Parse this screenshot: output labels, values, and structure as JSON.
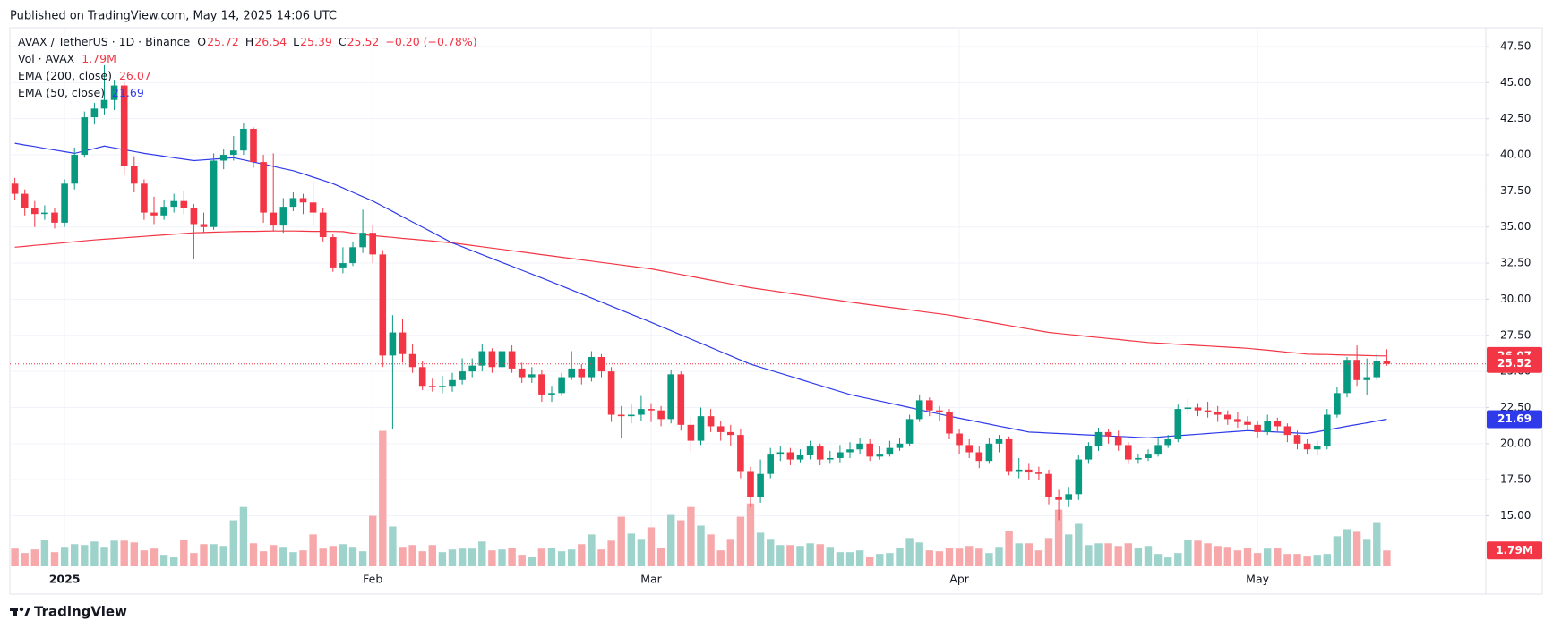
{
  "published": "Published on TradingView.com, May 14, 2025 14:06 UTC",
  "brand": "TradingView",
  "chart_data": {
    "type": "candlestick",
    "title": "AVAX / TetherUS · 1D · Binance",
    "ohlc_letters": [
      "O",
      "H",
      "L",
      "C"
    ],
    "change": "−0.20 (−0.78%)",
    "categories": [
      null,
      null,
      null,
      null,
      null,
      "2025",
      null,
      null,
      null,
      null,
      null,
      null,
      null,
      null,
      null,
      null,
      null,
      null,
      null,
      null,
      null,
      null,
      null,
      null,
      null,
      null,
      null,
      null,
      null,
      null,
      null,
      null,
      null,
      null,
      null,
      null,
      "Feb",
      null,
      null,
      null,
      null,
      null,
      null,
      null,
      null,
      null,
      null,
      null,
      null,
      null,
      null,
      null,
      null,
      null,
      null,
      null,
      null,
      null,
      null,
      null,
      null,
      null,
      null,
      null,
      "Mar",
      null,
      null,
      null,
      null,
      null,
      null,
      null,
      null,
      null,
      null,
      null,
      null,
      null,
      null,
      null,
      null,
      null,
      null,
      null,
      null,
      null,
      null,
      null,
      null,
      null,
      null,
      null,
      null,
      null,
      null,
      "Apr",
      null,
      null,
      null,
      null,
      null,
      null,
      null,
      null,
      null,
      null,
      null,
      null,
      null,
      null,
      null,
      null,
      null,
      null,
      null,
      null,
      null,
      null,
      null,
      null,
      null,
      null,
      null,
      null,
      null,
      "May",
      null,
      null,
      null,
      null,
      null,
      null,
      null,
      null,
      null,
      null,
      null,
      null,
      null
    ],
    "open": [
      38.0,
      37.3,
      36.3,
      35.9,
      36.0,
      35.3,
      38.0,
      40.0,
      42.6,
      43.2,
      43.8,
      44.8,
      39.2,
      38.0,
      36.0,
      35.8,
      36.4,
      36.8,
      36.3,
      35.2,
      35.0,
      39.6,
      40.0,
      40.3,
      41.8,
      39.5,
      36.0,
      35.1,
      36.4,
      37.0,
      36.7,
      36.0,
      34.3,
      32.2,
      32.5,
      33.6,
      34.6,
      33.1,
      26.1,
      27.7,
      26.2,
      25.3,
      24.0,
      23.9,
      24.0,
      24.4,
      25.0,
      25.4,
      26.4,
      25.3,
      26.4,
      25.2,
      24.6,
      24.8,
      23.4,
      23.5,
      24.6,
      25.2,
      24.6,
      26.0,
      25.0,
      22.0,
      21.9,
      22.0,
      22.4,
      22.3,
      21.7,
      24.8,
      21.3,
      20.2,
      21.9,
      21.2,
      20.8,
      20.6,
      18.1,
      16.3,
      17.9,
      19.3,
      19.4,
      18.9,
      19.2,
      19.8,
      18.9,
      19.0,
      19.4,
      19.6,
      20.0,
      19.1,
      19.3,
      19.7,
      20.0,
      21.7,
      23.0,
      22.3,
      22.2,
      20.7,
      19.9,
      19.4,
      18.8,
      20.0,
      20.3,
      18.1,
      18.2,
      18.0,
      17.9,
      16.3,
      16.1,
      16.5,
      18.9,
      19.8,
      20.8,
      20.5,
      19.9,
      18.9,
      19.0,
      19.3,
      19.9,
      20.3,
      22.4,
      22.5,
      22.3,
      22.2,
      22.0,
      21.7,
      21.5,
      21.3,
      20.8,
      21.6,
      21.2,
      20.6,
      20.0,
      19.6,
      19.8,
      22.0,
      23.5,
      25.8,
      24.4,
      24.6,
      25.72
    ],
    "high": [
      38.4,
      37.6,
      36.8,
      36.5,
      36.3,
      38.3,
      40.5,
      43.0,
      43.6,
      46.2,
      45.2,
      45.0,
      39.9,
      38.3,
      37.1,
      36.9,
      37.3,
      37.5,
      36.6,
      36.0,
      40.1,
      40.4,
      41.3,
      42.2,
      41.9,
      40.0,
      40.1,
      37.0,
      37.4,
      37.3,
      38.2,
      36.3,
      34.5,
      33.6,
      34.0,
      36.2,
      35.1,
      33.4,
      28.9,
      28.6,
      26.9,
      25.7,
      24.5,
      24.7,
      24.9,
      25.9,
      25.9,
      26.9,
      26.6,
      27.1,
      26.8,
      25.6,
      25.3,
      25.1,
      24.0,
      24.9,
      26.4,
      25.5,
      26.4,
      26.2,
      25.3,
      22.6,
      22.7,
      23.3,
      22.8,
      22.6,
      25.1,
      25.0,
      21.8,
      22.5,
      22.4,
      21.6,
      21.3,
      21.0,
      18.4,
      18.9,
      19.7,
      19.8,
      19.7,
      19.6,
      20.2,
      20.0,
      19.5,
      19.9,
      20.1,
      20.4,
      20.3,
      19.8,
      20.2,
      20.4,
      22.0,
      23.4,
      23.2,
      22.6,
      22.4,
      21.0,
      20.3,
      19.8,
      20.4,
      20.6,
      20.5,
      19.0,
      18.6,
      18.4,
      18.2,
      16.8,
      17.0,
      19.2,
      20.1,
      21.1,
      21.0,
      20.9,
      20.1,
      19.3,
      19.6,
      20.5,
      20.6,
      22.7,
      23.1,
      22.8,
      22.9,
      22.6,
      22.3,
      22.2,
      21.9,
      21.6,
      22.0,
      21.8,
      21.4,
      20.9,
      20.3,
      20.2,
      22.4,
      23.9,
      26.0,
      26.8,
      25.9,
      26.2,
      26.54
    ],
    "low": [
      36.9,
      35.8,
      35.0,
      35.5,
      34.9,
      35.0,
      37.6,
      39.8,
      42.1,
      42.8,
      43.1,
      38.6,
      37.4,
      35.5,
      35.2,
      35.5,
      36.0,
      35.9,
      32.8,
      34.6,
      34.8,
      39.0,
      39.6,
      40.0,
      39.1,
      35.3,
      34.7,
      34.6,
      36.1,
      35.9,
      35.1,
      34.0,
      31.9,
      31.8,
      32.3,
      33.2,
      32.5,
      25.3,
      21.0,
      25.6,
      24.9,
      23.7,
      23.6,
      23.5,
      23.6,
      24.1,
      24.6,
      25.0,
      24.9,
      25.0,
      24.9,
      24.2,
      24.2,
      22.9,
      22.9,
      23.3,
      24.4,
      24.1,
      24.3,
      24.6,
      21.5,
      20.4,
      21.4,
      21.6,
      21.5,
      21.2,
      21.4,
      20.9,
      19.4,
      19.9,
      20.8,
      20.2,
      19.8,
      17.6,
      15.6,
      15.9,
      17.6,
      18.8,
      18.5,
      18.7,
      18.9,
      18.5,
      18.6,
      18.7,
      19.0,
      19.3,
      18.8,
      18.9,
      19.1,
      19.5,
      19.8,
      21.5,
      21.9,
      21.6,
      20.3,
      19.3,
      19.0,
      18.3,
      18.6,
      19.4,
      17.8,
      17.6,
      17.5,
      17.5,
      15.8,
      14.7,
      15.6,
      16.1,
      18.6,
      19.5,
      20.0,
      19.5,
      18.6,
      18.6,
      18.8,
      19.1,
      19.7,
      20.1,
      22.0,
      21.9,
      21.8,
      21.5,
      21.3,
      21.1,
      20.9,
      20.4,
      20.6,
      20.8,
      20.1,
      19.6,
      19.3,
      19.2,
      19.6,
      21.8,
      23.2,
      24.0,
      23.4,
      24.4,
      25.39
    ],
    "close": [
      37.3,
      36.3,
      35.9,
      36.0,
      35.3,
      38.0,
      40.0,
      42.6,
      43.2,
      43.8,
      44.8,
      39.2,
      38.0,
      36.0,
      35.8,
      36.4,
      36.8,
      36.3,
      35.2,
      35.0,
      39.6,
      40.0,
      40.3,
      41.8,
      39.5,
      36.0,
      35.1,
      36.4,
      37.0,
      36.7,
      36.0,
      34.3,
      32.2,
      32.5,
      33.6,
      34.6,
      33.1,
      26.1,
      27.7,
      26.2,
      25.3,
      24.0,
      23.9,
      24.0,
      24.4,
      25.0,
      25.4,
      26.4,
      25.3,
      26.4,
      25.2,
      24.6,
      24.8,
      23.4,
      23.5,
      24.6,
      25.2,
      24.6,
      26.0,
      25.0,
      22.0,
      21.9,
      22.0,
      22.4,
      22.3,
      21.7,
      24.8,
      21.3,
      20.2,
      21.9,
      21.2,
      20.8,
      20.6,
      18.1,
      16.3,
      17.9,
      19.3,
      19.4,
      18.9,
      19.2,
      19.8,
      18.9,
      19.0,
      19.4,
      19.6,
      20.0,
      19.1,
      19.3,
      19.7,
      20.0,
      21.7,
      23.0,
      22.3,
      22.2,
      20.7,
      19.9,
      19.4,
      18.8,
      20.0,
      20.3,
      18.1,
      18.2,
      18.0,
      17.9,
      16.3,
      16.1,
      16.5,
      18.9,
      19.8,
      20.8,
      20.5,
      19.9,
      18.9,
      19.0,
      19.3,
      19.9,
      20.3,
      22.4,
      22.5,
      22.3,
      22.2,
      22.0,
      21.7,
      21.5,
      21.3,
      20.8,
      21.6,
      21.2,
      20.6,
      20.0,
      19.6,
      19.8,
      22.0,
      23.5,
      25.8,
      24.4,
      24.6,
      25.72,
      25.52
    ],
    "up_color": "#089981",
    "down_color": "#f23645",
    "volume": {
      "name": "Vol · AVAX",
      "up_color": "#9ed3cc",
      "down_color": "#f7a8ab",
      "values": [
        2.0,
        1.5,
        1.9,
        3.0,
        1.6,
        2.2,
        2.5,
        2.4,
        2.8,
        2.2,
        2.9,
        2.9,
        2.7,
        1.8,
        2.0,
        1.3,
        1.1,
        3.0,
        1.5,
        2.5,
        2.5,
        2.3,
        5.2,
        6.7,
        2.6,
        1.7,
        2.4,
        2.2,
        1.6,
        1.8,
        3.6,
        2.0,
        2.3,
        2.5,
        2.2,
        1.7,
        5.7,
        15.3,
        4.5,
        2.2,
        2.4,
        1.7,
        2.4,
        1.6,
        1.9,
        2.0,
        2.0,
        2.8,
        1.8,
        1.9,
        2.1,
        1.3,
        1.1,
        2.0,
        2.1,
        1.7,
        1.9,
        2.5,
        3.6,
        1.9,
        2.9,
        5.6,
        3.7,
        3.1,
        4.4,
        2.1,
        5.8,
        5.2,
        6.7,
        4.6,
        3.6,
        1.8,
        3.1,
        5.6,
        7.1,
        3.8,
        3.1,
        2.4,
        2.4,
        2.3,
        2.6,
        2.5,
        2.2,
        1.6,
        1.6,
        1.8,
        1.1,
        1.4,
        1.5,
        2.1,
        3.2,
        2.7,
        1.8,
        1.7,
        2.1,
        2.0,
        2.3,
        2.0,
        1.5,
        2.2,
        4.0,
        2.6,
        2.6,
        1.8,
        3.2,
        6.4,
        3.6,
        4.8,
        2.4,
        2.6,
        2.6,
        2.3,
        2.6,
        2.1,
        2.3,
        1.4,
        1.0,
        1.5,
        3.0,
        2.9,
        2.6,
        2.3,
        2.2,
        1.8,
        2.1,
        1.5,
        2.0,
        2.1,
        1.4,
        1.4,
        1.2,
        1.3,
        1.4,
        3.4,
        4.2,
        3.9,
        3.1,
        5.0,
        1.79
      ],
      "value_labels": [
        null,
        null,
        null,
        null,
        null,
        null,
        null,
        null,
        null,
        null,
        null,
        null,
        null,
        null,
        null,
        null,
        null,
        null,
        null,
        null,
        null,
        null,
        null,
        null,
        null,
        null,
        null,
        null,
        null,
        null,
        null,
        null,
        null,
        null,
        null,
        null,
        null,
        null,
        null,
        null,
        null,
        null,
        null,
        null,
        null,
        null,
        null,
        null,
        null,
        null,
        null,
        null,
        null,
        null,
        null,
        null,
        null,
        null,
        null,
        null,
        null,
        null,
        null,
        null,
        null,
        null,
        null,
        null,
        null,
        null,
        null,
        null,
        null,
        null,
        null,
        null,
        null,
        null,
        null,
        null,
        null,
        null,
        null,
        null,
        null,
        null,
        null,
        null,
        null,
        null,
        null,
        null,
        null,
        null,
        null,
        null,
        null,
        null,
        null,
        null,
        null,
        null,
        null,
        null,
        null,
        null,
        null,
        null,
        null,
        null,
        null,
        null,
        null,
        null,
        null,
        null,
        null,
        null,
        null,
        null,
        null,
        null,
        null,
        null,
        null,
        null,
        null,
        null,
        null,
        null,
        null,
        null,
        null,
        null,
        null,
        null,
        null,
        null,
        "1.79M"
      ]
    },
    "series": [
      {
        "name": "EMA (200, close)",
        "color": "#f23645",
        "values": [
          33.6,
          33.66,
          33.73,
          33.79,
          33.85,
          33.91,
          33.98,
          34.04,
          34.1,
          34.15,
          34.2,
          34.25,
          34.3,
          34.35,
          34.4,
          34.45,
          34.5,
          34.55,
          34.6,
          34.62,
          34.64,
          34.66,
          34.68,
          34.7,
          34.7,
          34.71,
          34.72,
          34.72,
          34.72,
          34.71,
          34.7,
          34.7,
          34.69,
          34.68,
          34.58,
          34.48,
          34.4,
          34.34,
          34.28,
          34.21,
          34.15,
          34.09,
          34.03,
          33.96,
          33.9,
          33.81,
          33.72,
          33.63,
          33.54,
          33.45,
          33.36,
          33.27,
          33.18,
          33.09,
          33.0,
          32.91,
          32.82,
          32.73,
          32.64,
          32.55,
          32.46,
          32.37,
          32.28,
          32.19,
          32.1,
          31.97,
          31.84,
          31.71,
          31.58,
          31.45,
          31.32,
          31.19,
          31.06,
          30.93,
          30.8,
          30.7,
          30.6,
          30.5,
          30.4,
          30.3,
          30.2,
          30.1,
          30.0,
          29.9,
          29.8,
          29.71,
          29.62,
          29.53,
          29.44,
          29.35,
          29.26,
          29.17,
          29.08,
          28.99,
          28.9,
          28.78,
          28.66,
          28.54,
          28.42,
          28.3,
          28.18,
          28.06,
          27.94,
          27.82,
          27.7,
          27.63,
          27.56,
          27.49,
          27.42,
          27.35,
          27.28,
          27.21,
          27.14,
          27.07,
          27.0,
          26.96,
          26.92,
          26.88,
          26.84,
          26.8,
          26.76,
          26.72,
          26.68,
          26.64,
          26.6,
          26.53,
          26.47,
          26.4,
          26.33,
          26.27,
          26.2,
          26.18,
          26.17,
          26.15,
          26.13,
          26.12,
          26.1,
          26.08,
          26.07
        ]
      },
      {
        "name": "EMA (50, close)",
        "color": "#2f3bea",
        "values": [
          40.8,
          40.68,
          40.57,
          40.45,
          40.33,
          40.22,
          40.1,
          40.27,
          40.43,
          40.6,
          40.48,
          40.35,
          40.23,
          40.1,
          40.0,
          39.9,
          39.8,
          39.7,
          39.6,
          39.65,
          39.7,
          39.75,
          39.8,
          39.65,
          39.5,
          39.35,
          39.2,
          39.05,
          38.9,
          38.68,
          38.45,
          38.23,
          38.0,
          37.7,
          37.4,
          37.1,
          36.8,
          36.44,
          36.08,
          35.71,
          35.35,
          34.99,
          34.63,
          34.26,
          33.9,
          33.63,
          33.36,
          33.09,
          32.82,
          32.55,
          32.28,
          32.01,
          31.74,
          31.47,
          31.2,
          30.92,
          30.64,
          30.36,
          30.08,
          29.8,
          29.52,
          29.24,
          28.96,
          28.68,
          28.4,
          28.11,
          27.82,
          27.53,
          27.24,
          26.95,
          26.66,
          26.37,
          26.08,
          25.79,
          25.5,
          25.29,
          25.08,
          24.87,
          24.66,
          24.45,
          24.24,
          24.03,
          23.82,
          23.61,
          23.4,
          23.25,
          23.1,
          22.95,
          22.8,
          22.65,
          22.5,
          22.35,
          22.2,
          22.05,
          21.9,
          21.76,
          21.63,
          21.49,
          21.35,
          21.21,
          21.08,
          20.94,
          20.8,
          20.77,
          20.73,
          20.7,
          20.67,
          20.63,
          20.6,
          20.57,
          20.53,
          20.5,
          20.47,
          20.43,
          20.4,
          20.45,
          20.5,
          20.55,
          20.6,
          20.65,
          20.7,
          20.75,
          20.8,
          20.85,
          20.9,
          20.87,
          20.83,
          20.8,
          20.77,
          20.73,
          20.7,
          20.82,
          20.95,
          21.07,
          21.2,
          21.32,
          21.44,
          21.57,
          21.69
        ]
      }
    ],
    "ylim": [
      11.5,
      48.8
    ],
    "yticks": [
      {
        "value": 15,
        "label": "15.00"
      },
      {
        "value": 17.5,
        "label": "17.50"
      },
      {
        "value": 20,
        "label": "20.00"
      },
      {
        "value": 22.5,
        "label": "22.50"
      },
      {
        "value": 25,
        "label": "25.00"
      },
      {
        "value": 27.5,
        "label": "27.50"
      },
      {
        "value": 30,
        "label": "30.00"
      },
      {
        "value": 32.5,
        "label": "32.50"
      },
      {
        "value": 35,
        "label": "35.00"
      },
      {
        "value": 37.5,
        "label": "37.50"
      },
      {
        "value": 40,
        "label": "40.00"
      },
      {
        "value": 42.5,
        "label": "42.50"
      },
      {
        "value": 45,
        "label": "45.00"
      },
      {
        "value": 47.5,
        "label": "47.50"
      }
    ],
    "grid": true
  }
}
